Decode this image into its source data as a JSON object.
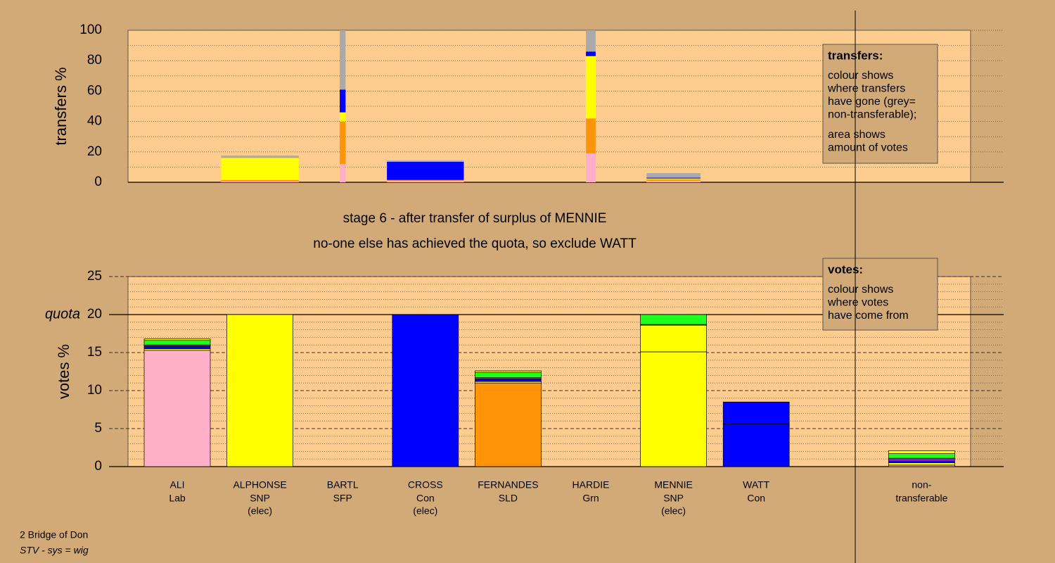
{
  "chart_data": [
    {
      "type": "bar",
      "stacked": true,
      "ylabel": "transfers %",
      "ylim": [
        0,
        100
      ],
      "yticks": [
        0,
        20,
        40,
        60,
        80,
        100
      ],
      "minor_yticks": [
        10,
        30,
        50,
        70,
        90
      ],
      "amounts": [
        0,
        2.1,
        0.9,
        1.7,
        0,
        1.5,
        0.5,
        0,
        0
      ],
      "series": [
        {
          "color": "#ffb0c8",
          "values": [
            0,
            0.5,
            12,
            1,
            0,
            19,
            1,
            0,
            0
          ]
        },
        {
          "color": "#ff9408",
          "values": [
            0,
            1,
            28,
            0.5,
            0,
            23,
            1,
            0,
            0
          ]
        },
        {
          "color": "#ffff00",
          "values": [
            0,
            14.5,
            6,
            0,
            0,
            41,
            0.5,
            0,
            0
          ]
        },
        {
          "color": "#0000ff",
          "values": [
            0,
            0,
            15,
            12,
            0,
            3,
            0.5,
            0,
            0
          ]
        },
        {
          "color": "#aaaaaa",
          "values": [
            0,
            1.5,
            39,
            0.8,
            0,
            14,
            3,
            0,
            0
          ]
        }
      ],
      "legend": {
        "title": "transfers:",
        "paragraphs": [
          [
            "colour shows",
            "where transfers",
            "have gone (grey=",
            "non-transferable);"
          ],
          [
            "area shows",
            "amount of votes"
          ]
        ]
      }
    },
    {
      "type": "bar",
      "stacked": true,
      "ylabel": "votes %",
      "ylim": [
        0,
        25
      ],
      "yticks": [
        0,
        5,
        10,
        15,
        20,
        25
      ],
      "minor_yticks": [
        1,
        2,
        3,
        4,
        6,
        7,
        8,
        9,
        11,
        12,
        13,
        14,
        16,
        17,
        18,
        19,
        21,
        22,
        23,
        24
      ],
      "ref_line": {
        "value": 20,
        "label": "quota"
      },
      "categories": [
        "ALI",
        "ALPHONSE",
        "BARTL",
        "CROSS",
        "FERNANDES",
        "HARDIE",
        "MENNIE",
        "WATT",
        "non-"
      ],
      "parties": [
        "Lab",
        "SNP",
        "SFP",
        "Con",
        "SLD",
        "Grn",
        "SNP",
        "Con",
        "transferable"
      ],
      "notes": [
        null,
        "(elec)",
        null,
        "(elec)",
        null,
        null,
        "(elec)",
        null,
        null
      ],
      "series": [
        {
          "color": "#ffb0c8",
          "values": [
            15.3,
            0,
            0,
            0,
            0,
            0,
            0,
            0,
            0.2
          ]
        },
        {
          "color": "#ff9408",
          "values": [
            0,
            0,
            0,
            0,
            11,
            0,
            0,
            0,
            0
          ]
        },
        {
          "color": "#ffff00",
          "values": [
            0,
            20,
            0,
            0,
            0,
            0,
            15.1,
            0,
            0
          ]
        },
        {
          "color": "#0000ff",
          "values": [
            0,
            0,
            0,
            20,
            0,
            0,
            0,
            5.6,
            0
          ]
        },
        {
          "color": "#ffff00",
          "values": [
            0.2,
            0,
            0,
            0,
            0.2,
            0,
            3.5,
            0,
            0.3
          ]
        },
        {
          "color": "#0000ff",
          "values": [
            0.3,
            0,
            0,
            0,
            0.3,
            0,
            0.1,
            2.9,
            0.2
          ]
        },
        {
          "color": "#8020c0",
          "values": [
            0.2,
            0,
            0,
            0,
            0.2,
            0,
            0,
            0,
            0.4
          ]
        },
        {
          "color": "#20ff20",
          "values": [
            0.6,
            0,
            0,
            0,
            0.7,
            0,
            1.3,
            0,
            0.6
          ]
        },
        {
          "color": "#ffff00",
          "values": [
            0.2,
            0,
            0,
            0,
            0.2,
            0,
            0,
            0,
            0.4
          ]
        }
      ],
      "legend": {
        "title": "votes:",
        "paragraphs": [
          [
            "colour shows",
            "where votes",
            "have come from"
          ]
        ]
      }
    }
  ],
  "headings": [
    "stage 6 - after transfer of surplus of MENNIE",
    "no-one else has achieved the quota, so exclude WATT"
  ],
  "footer": {
    "area": "2 Bridge of Don",
    "system": "STV - sys = wig"
  }
}
